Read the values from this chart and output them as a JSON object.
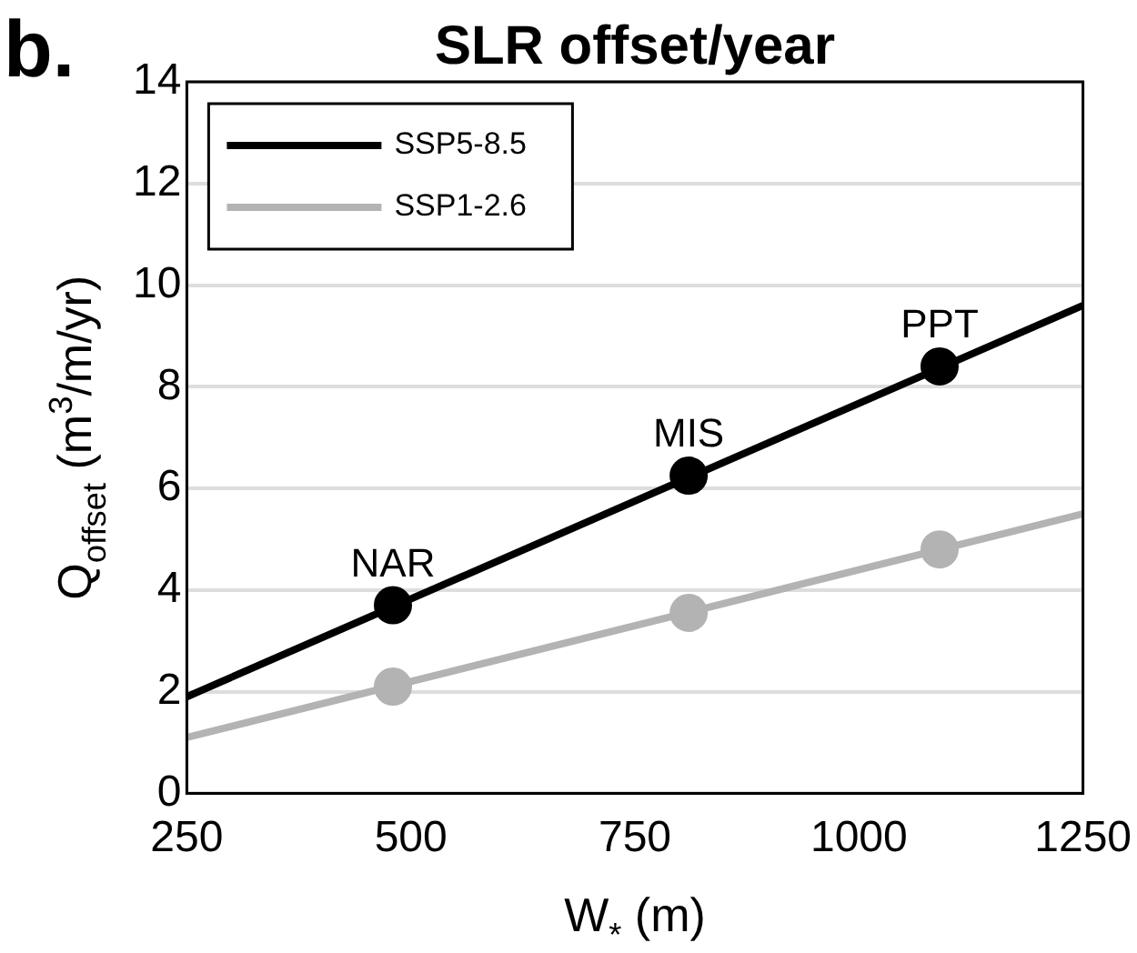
{
  "chart_data": {
    "type": "line",
    "title": "SLR offset/year",
    "xlabel": "W$_{*}$ (m)",
    "ylabel": "Q$_{offset}$ (m$^{3}$/m/yr)",
    "xlim": [
      250,
      1250
    ],
    "xticks": [
      250,
      500,
      750,
      1000,
      1250
    ],
    "ylim": [
      0,
      14
    ],
    "yticks": [
      0,
      2,
      4,
      6,
      8,
      10,
      12,
      14
    ],
    "grid": "y",
    "legend": "top left",
    "series": [
      {
        "name": "SSP5-8.5",
        "color": "#000000",
        "x": [
          250,
          1250
        ],
        "values": [
          1.9,
          9.6
        ],
        "marker": "none"
      },
      {
        "name": "SSP1-2.6",
        "color": "#b3b3b3",
        "x": [
          250,
          1250
        ],
        "values": [
          1.1,
          5.5
        ],
        "marker": "none"
      },
      {
        "type": "scatter",
        "color": "#000000",
        "x": [
          480,
          810,
          1090
        ],
        "values": [
          3.7,
          6.25,
          8.4
        ],
        "marker": "circle"
      },
      {
        "type": "scatter",
        "color": "#b3b3b3",
        "x": [
          480,
          810,
          1090
        ],
        "values": [
          2.1,
          3.55,
          4.8
        ],
        "marker": "circle"
      }
    ],
    "annotations": [
      "b.",
      {
        "text": "NAR",
        "x": 480,
        "y": 3.7
      },
      {
        "text": "MIS",
        "x": 810,
        "y": 6.25
      },
      {
        "text": "PPT",
        "x": 1090,
        "y": 8.4
      }
    ]
  }
}
